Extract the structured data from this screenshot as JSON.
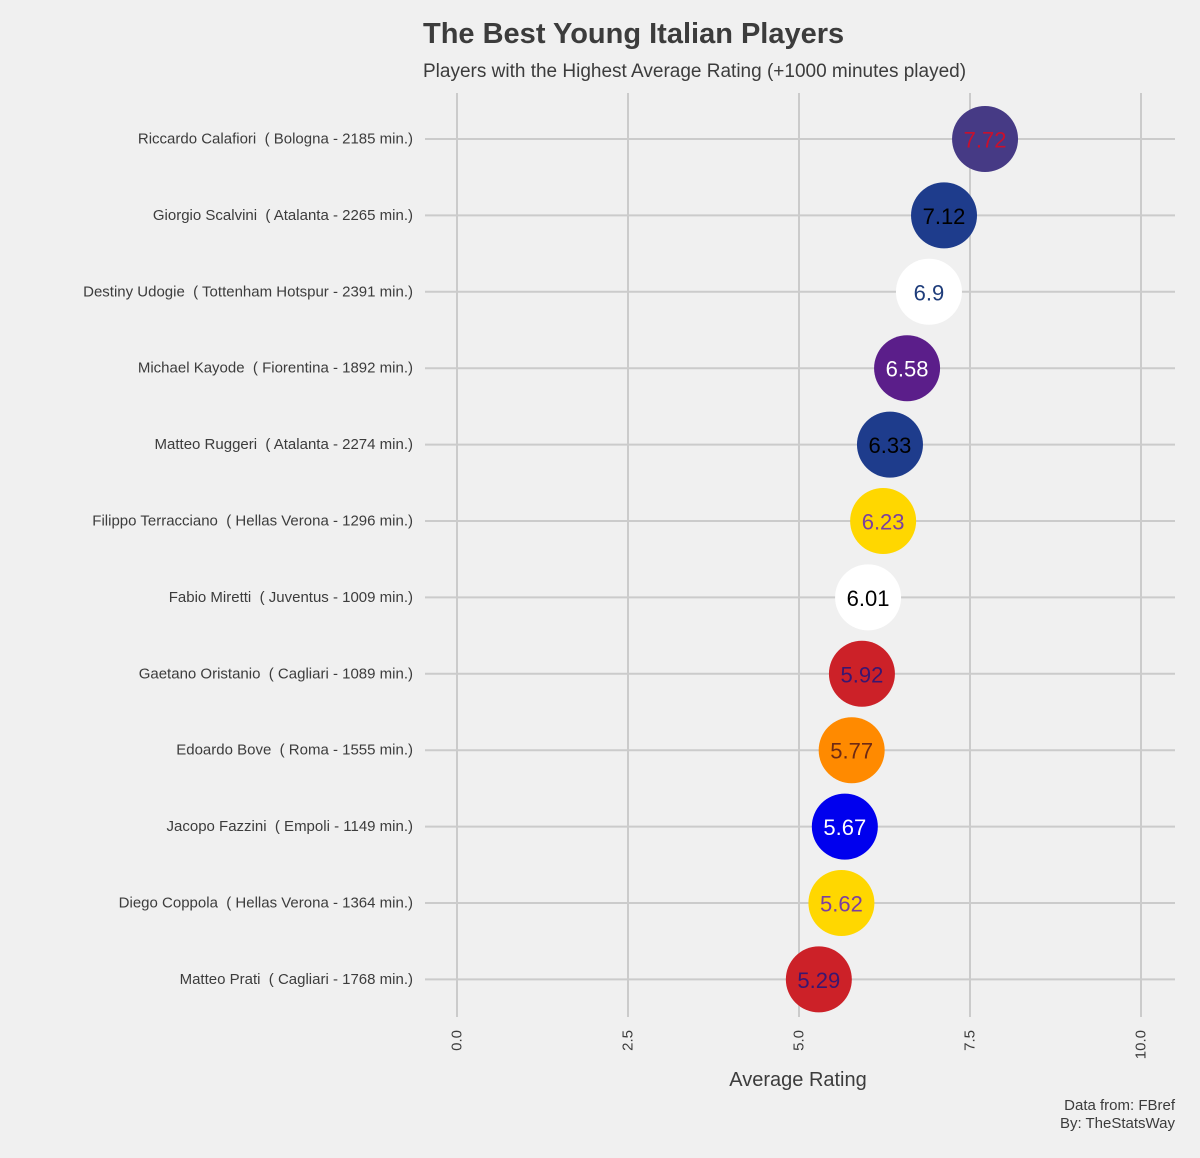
{
  "chart_data": {
    "type": "scatter",
    "title": "The Best Young Italian Players",
    "subtitle": "Players with the Highest Average Rating (+1000 minutes played)",
    "xlabel": "Average Rating",
    "ylabel": "",
    "xlim": [
      0,
      10
    ],
    "xticks": [
      "0.0",
      "2.5",
      "5.0",
      "7.5",
      "10.0"
    ],
    "xtick_values": [
      0,
      2.5,
      5,
      7.5,
      10
    ],
    "grid": true,
    "points": [
      {
        "label": "Riccardo Calafiori  ( Bologna - 2185 min.)",
        "value": 7.72,
        "value_label": "7.72",
        "fill": "#463a85",
        "text_color": "#c8102e"
      },
      {
        "label": "Giorgio Scalvini  ( Atalanta - 2265 min.)",
        "value": 7.12,
        "value_label": "7.12",
        "fill": "#1e3c8c",
        "text_color": "#000000"
      },
      {
        "label": "Destiny Udogie  ( Tottenham Hotspur - 2391 min.)",
        "value": 6.9,
        "value_label": "6.9",
        "fill": "#ffffff",
        "text_color": "#1e3c7a"
      },
      {
        "label": "Michael Kayode  ( Fiorentina - 1892 min.)",
        "value": 6.58,
        "value_label": "6.58",
        "fill": "#5b1e8a",
        "text_color": "#ffffff"
      },
      {
        "label": "Matteo Ruggeri  ( Atalanta - 2274 min.)",
        "value": 6.33,
        "value_label": "6.33",
        "fill": "#1e3c8c",
        "text_color": "#000000"
      },
      {
        "label": "Filippo Terracciano  ( Hellas Verona - 1296 min.)",
        "value": 6.23,
        "value_label": "6.23",
        "fill": "#ffd700",
        "text_color": "#7b3fa0"
      },
      {
        "label": "Fabio Miretti  ( Juventus - 1009 min.)",
        "value": 6.01,
        "value_label": "6.01",
        "fill": "#ffffff",
        "text_color": "#000000"
      },
      {
        "label": "Gaetano Oristanio  ( Cagliari - 1089 min.)",
        "value": 5.92,
        "value_label": "5.92",
        "fill": "#cc2128",
        "text_color": "#3a1670"
      },
      {
        "label": "Edoardo Bove  ( Roma - 1555 min.)",
        "value": 5.77,
        "value_label": "5.77",
        "fill": "#ff8a00",
        "text_color": "#6e2a14"
      },
      {
        "label": "Jacopo Fazzini  ( Empoli - 1149 min.)",
        "value": 5.67,
        "value_label": "5.67",
        "fill": "#0000ee",
        "text_color": "#ffffff"
      },
      {
        "label": "Diego Coppola  ( Hellas Verona - 1364 min.)",
        "value": 5.62,
        "value_label": "5.62",
        "fill": "#ffd700",
        "text_color": "#7b3fa0"
      },
      {
        "label": "Matteo Prati  ( Cagliari - 1768 min.)",
        "value": 5.29,
        "value_label": "5.29",
        "fill": "#cc2128",
        "text_color": "#3a1670"
      }
    ]
  },
  "caption": {
    "line1": "Data from: FBref",
    "line2": "By: TheStatsWay"
  },
  "colors": {
    "background": "#f0f0f0",
    "grid": "#cbcbcb",
    "text": "#3c3c3c"
  }
}
